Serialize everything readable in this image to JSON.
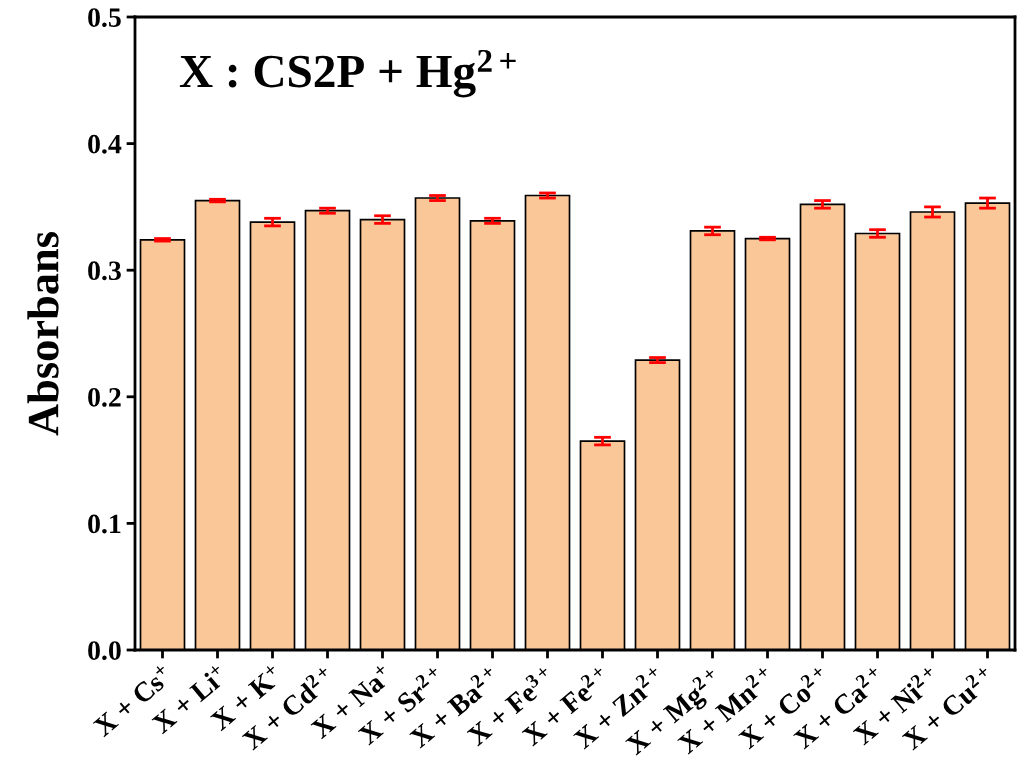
{
  "chart_data": {
    "type": "bar",
    "ylabel": "Absorbans",
    "annotations": [
      "X : CS2P + Hg$^{2+}$"
    ],
    "categories": [
      "X + Cs$^{+}$",
      "X + Li$^{+}$",
      "X + K$^{+}$",
      "X + Cd$^{2+}$",
      "X + Na$^{+}$",
      "X + Sr$^{2+}$",
      "X + Ba$^{2+}$",
      "X + Fe$^{3+}$",
      "X + Fe$^{2+}$",
      "X + Zn$^{2+}$",
      "X + Mg$^{2+}$",
      "X + Mn$^{2+}$",
      "X + Co$^{2+}$",
      "X + Ca$^{2+}$",
      "X + Ni$^{2+}$",
      "X + Cu$^{2+}$"
    ],
    "values": [
      0.324,
      0.355,
      0.338,
      0.347,
      0.34,
      0.357,
      0.339,
      0.359,
      0.165,
      0.229,
      0.331,
      0.325,
      0.352,
      0.329,
      0.346,
      0.353
    ],
    "errors": [
      0.001,
      0.001,
      0.003,
      0.002,
      0.003,
      0.002,
      0.002,
      0.002,
      0.003,
      0.002,
      0.003,
      0.001,
      0.003,
      0.003,
      0.004,
      0.004
    ],
    "color": "#fac898",
    "ylim": [
      0,
      0.5
    ],
    "yticks": [
      {
        "value": 0,
        "label": "0.0"
      },
      0.1,
      0.2,
      0.3,
      0.4,
      0.5
    ],
    "grid": false,
    "legend": false
  }
}
